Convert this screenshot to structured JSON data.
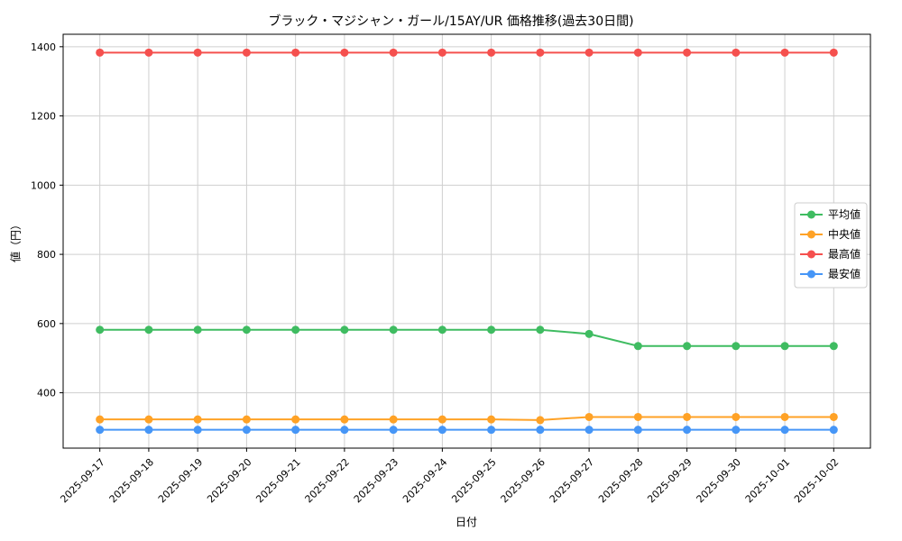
{
  "chart_data": {
    "type": "line",
    "title": "ブラック・マジシャン・ガール/15AY/UR 価格推移(過去30日間)",
    "xlabel": "日付",
    "ylabel": "値（円）",
    "categories": [
      "2025-09-17",
      "2025-09-18",
      "2025-09-19",
      "2025-09-20",
      "2025-09-21",
      "2025-09-22",
      "2025-09-23",
      "2025-09-24",
      "2025-09-25",
      "2025-09-26",
      "2025-09-27",
      "2025-09-28",
      "2025-09-29",
      "2025-09-30",
      "2025-10-01",
      "2025-10-02"
    ],
    "series": [
      {
        "name": "平均値",
        "color": "#3fbc61",
        "values": [
          582,
          582,
          582,
          582,
          582,
          582,
          582,
          582,
          582,
          582,
          570,
          535,
          535,
          535,
          535,
          535
        ]
      },
      {
        "name": "中央値",
        "color": "#ffa226",
        "values": [
          323,
          323,
          323,
          323,
          323,
          323,
          323,
          323,
          323,
          321,
          330,
          330,
          330,
          330,
          330,
          330
        ]
      },
      {
        "name": "最高値",
        "color": "#f5504e",
        "values": [
          1383,
          1383,
          1383,
          1383,
          1383,
          1383,
          1383,
          1383,
          1383,
          1383,
          1383,
          1383,
          1383,
          1383,
          1383,
          1383
        ]
      },
      {
        "name": "最安値",
        "color": "#4696f7",
        "values": [
          293,
          293,
          293,
          293,
          293,
          293,
          293,
          293,
          293,
          293,
          293,
          293,
          293,
          293,
          293,
          293
        ]
      }
    ],
    "ylim": [
      240,
      1436
    ],
    "yticks": [
      400,
      600,
      800,
      1000,
      1200,
      1400
    ],
    "grid": true,
    "grid_color": "#cfcfcf",
    "legend_position": "center right"
  }
}
